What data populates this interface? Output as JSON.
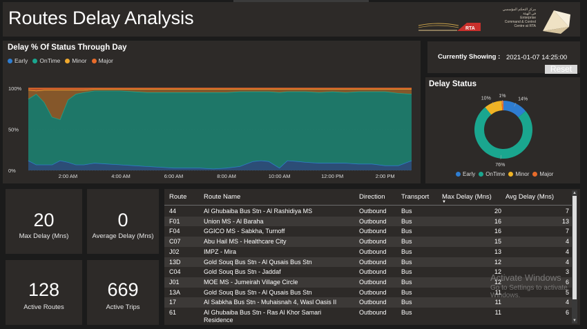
{
  "header": {
    "title": "Routes Delay Analysis",
    "logo_rta_text": "RTA",
    "logo_ecc_lines": [
      "مركز التحكم المؤسسي",
      "في الهيئة",
      "Enterprise",
      "Command & Control",
      "Centre at RTA"
    ]
  },
  "line_chart": {
    "title": "Delay % Of Status Through Day",
    "legend": [
      {
        "name": "Early",
        "color": "#2e7dd1"
      },
      {
        "name": "OnTime",
        "color": "#1aa68f"
      },
      {
        "name": "Minor",
        "color": "#f0a92e"
      },
      {
        "name": "Major",
        "color": "#e86b2a"
      }
    ]
  },
  "chart_data": [
    {
      "type": "area",
      "title": "Delay % Of Status Through Day",
      "stacked": true,
      "y_tick_labels": [
        "0%",
        "50%",
        "100%"
      ],
      "ylim": [
        0,
        100
      ],
      "x_tick_labels": [
        "2:00 AM",
        "4:00 AM",
        "6:00 AM",
        "8:00 AM",
        "10:00 AM",
        "12:00 PM",
        "2:00 PM"
      ],
      "x_hours": [
        0.5,
        0.8,
        1.1,
        1.4,
        1.7,
        2.0,
        2.3,
        2.6,
        3.0,
        3.5,
        4.0,
        4.5,
        5.0,
        5.5,
        6.0,
        6.3,
        6.6,
        7.0,
        7.5,
        8.0,
        8.5,
        9.0,
        9.3,
        9.6,
        10.0,
        10.3,
        10.7,
        11.0,
        11.5,
        12.0,
        12.5,
        13.0,
        13.5,
        14.0,
        14.5,
        15.0
      ],
      "grid": true,
      "legend_position": "top-left",
      "series": [
        {
          "name": "Early",
          "values": [
            12,
            7,
            7,
            7,
            12,
            10,
            7,
            7,
            9,
            8,
            7,
            6,
            5,
            4,
            3,
            3,
            3,
            3,
            2,
            3,
            5,
            11,
            12,
            11,
            3,
            12,
            11,
            10,
            9,
            9,
            9,
            8,
            8,
            6,
            6,
            12
          ]
        },
        {
          "name": "OnTime",
          "values": [
            75,
            86,
            76,
            58,
            50,
            76,
            86,
            88,
            88,
            89,
            90,
            90,
            90,
            91,
            92,
            92,
            92,
            92,
            93,
            92,
            91,
            85,
            84,
            85,
            92,
            84,
            85,
            86,
            86,
            87,
            86,
            88,
            88,
            90,
            88,
            81
          ]
        },
        {
          "name": "Minor",
          "values": [
            11,
            4,
            15,
            33,
            36,
            12,
            5,
            3,
            2,
            2,
            2,
            3,
            4,
            4,
            4,
            4,
            4,
            4,
            4,
            4,
            3,
            3,
            3,
            3,
            4,
            3,
            3,
            3,
            4,
            3,
            4,
            3,
            3,
            3,
            5,
            6
          ]
        },
        {
          "name": "Major",
          "values": [
            2,
            3,
            2,
            2,
            2,
            2,
            2,
            2,
            1,
            1,
            1,
            1,
            1,
            1,
            1,
            1,
            1,
            1,
            1,
            1,
            1,
            1,
            1,
            1,
            1,
            1,
            1,
            1,
            1,
            1,
            1,
            1,
            1,
            1,
            1,
            1
          ]
        }
      ]
    },
    {
      "type": "pie",
      "title": "Delay Status",
      "donut": true,
      "labels": [
        "Early",
        "OnTime",
        "Minor",
        "Major"
      ],
      "values": [
        14,
        76,
        10,
        1
      ],
      "value_labels": [
        "14%",
        "76%",
        "10%",
        "1%"
      ],
      "colors": [
        "#2e7dd1",
        "#1aa68f",
        "#f0b324",
        "#e86b2a"
      ],
      "legend_position": "bottom"
    }
  ],
  "current": {
    "label": "Currently Showing :",
    "value": "2021-01-07 14:25:00",
    "reset_label": "Reset"
  },
  "donut": {
    "title": "Delay Status",
    "legend": [
      {
        "name": "Early",
        "color": "#2e7dd1"
      },
      {
        "name": "OnTime",
        "color": "#1aa68f"
      },
      {
        "name": "Minor",
        "color": "#f0b324"
      },
      {
        "name": "Major",
        "color": "#e86b2a"
      }
    ]
  },
  "kpis": {
    "max_delay": {
      "value": "20",
      "label": "Max Delay (Mns)"
    },
    "avg_delay": {
      "value": "0",
      "label": "Average Delay (Mns)"
    },
    "active_routes": {
      "value": "128",
      "label": "Active Routes"
    },
    "active_trips": {
      "value": "669",
      "label": "Active Trips"
    }
  },
  "table": {
    "headers": {
      "route": "Route",
      "route_name": "Route Name",
      "direction": "Direction",
      "transport": "Transport",
      "max_delay": "Max Delay (Mns)",
      "avg_delay": "Avg Delay (Mns)"
    },
    "rows": [
      {
        "route": "44",
        "name": "Al Ghubaiba Bus Stn - Al Rashidiya MS",
        "direction": "Outbound",
        "transport": "Bus",
        "max": "20",
        "avg": "7"
      },
      {
        "route": "F01",
        "name": "Union MS - Al Baraha",
        "direction": "Outbound",
        "transport": "Bus",
        "max": "16",
        "avg": "13"
      },
      {
        "route": "F04",
        "name": "GGICO MS - Sabkha, Turnoff",
        "direction": "Outbound",
        "transport": "Bus",
        "max": "16",
        "avg": "7"
      },
      {
        "route": "C07",
        "name": "Abu Hail MS - Healthcare City",
        "direction": "Outbound",
        "transport": "Bus",
        "max": "15",
        "avg": "4"
      },
      {
        "route": "J02",
        "name": "IMPZ - Mira",
        "direction": "Outbound",
        "transport": "Bus",
        "max": "13",
        "avg": "4"
      },
      {
        "route": "13D",
        "name": "Gold Souq Bus Stn - Al Qusais Bus Stn",
        "direction": "Outbound",
        "transport": "Bus",
        "max": "12",
        "avg": "4"
      },
      {
        "route": "C04",
        "name": "Gold Souq Bus Stn - Jaddaf",
        "direction": "Outbound",
        "transport": "Bus",
        "max": "12",
        "avg": "3"
      },
      {
        "route": "J01",
        "name": "MOE MS - Jumeirah Village Circle",
        "direction": "Outbound",
        "transport": "Bus",
        "max": "12",
        "avg": "6"
      },
      {
        "route": "13A",
        "name": "Gold Souq Bus Stn - Al Qusais Bus Stn",
        "direction": "Outbound",
        "transport": "Bus",
        "max": "11",
        "avg": "5"
      },
      {
        "route": "17",
        "name": "Al Sabkha Bus Stn - Muhaisnah 4, Wasl Oasis II",
        "direction": "Outbound",
        "transport": "Bus",
        "max": "11",
        "avg": "4"
      },
      {
        "route": "61",
        "name": "Al Ghubaiba Bus Stn - Ras Al Khor Samari",
        "name2": "Residence",
        "direction": "Outbound",
        "transport": "Bus",
        "max": "11",
        "avg": "6"
      }
    ]
  },
  "watermark": {
    "title": "Activate Windows",
    "subtitle": "Go to Settings to activate Windows."
  }
}
